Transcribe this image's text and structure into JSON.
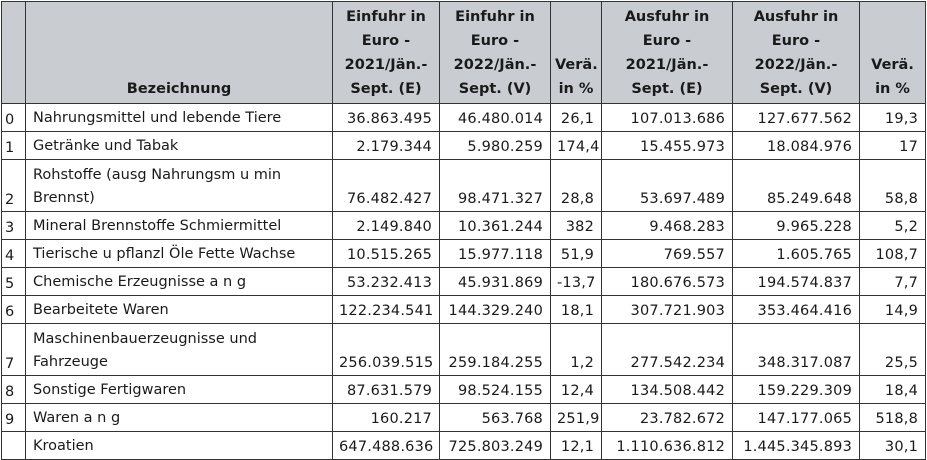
{
  "table": {
    "headers": {
      "code": "",
      "name": "Bezeichnung",
      "import_2021": "Einfuhr in Euro - 2021/Jän.-Sept. (E)",
      "import_2022": "Einfuhr in Euro - 2022/Jän.-Sept. (V)",
      "import_change": "Verä. in %",
      "export_2021": "Ausfuhr in Euro - 2021/Jän.-Sept. (E)",
      "export_2022": "Ausfuhr in Euro - 2022/Jän.-Sept. (V)",
      "export_change": "Verä. in %"
    },
    "rows": [
      {
        "code": "0",
        "name": "Nahrungsmittel und lebende Tiere",
        "import_2021": "36.863.495",
        "import_2022": "46.480.014",
        "import_change": "26,1",
        "export_2021": "107.013.686",
        "export_2022": "127.677.562",
        "export_change": "19,3"
      },
      {
        "code": "1",
        "name": "Getränke und Tabak",
        "import_2021": "2.179.344",
        "import_2022": "5.980.259",
        "import_change": "174,4",
        "export_2021": "15.455.973",
        "export_2022": "18.084.976",
        "export_change": "17"
      },
      {
        "code": "2",
        "name": "Rohstoffe (ausg Nahrungsm u min Brennst)",
        "import_2021": "76.482.427",
        "import_2022": "98.471.327",
        "import_change": "28,8",
        "export_2021": "53.697.489",
        "export_2022": "85.249.648",
        "export_change": "58,8"
      },
      {
        "code": "3",
        "name": "Mineral Brennstoffe Schmiermittel",
        "import_2021": "2.149.840",
        "import_2022": "10.361.244",
        "import_change": "382",
        "export_2021": "9.468.283",
        "export_2022": "9.965.228",
        "export_change": "5,2"
      },
      {
        "code": "4",
        "name": "Tierische u pflanzl Öle Fette Wachse",
        "import_2021": "10.515.265",
        "import_2022": "15.977.118",
        "import_change": "51,9",
        "export_2021": "769.557",
        "export_2022": "1.605.765",
        "export_change": "108,7"
      },
      {
        "code": "5",
        "name": "Chemische Erzeugnisse a n g",
        "import_2021": "53.232.413",
        "import_2022": "45.931.869",
        "import_change": "-13,7",
        "export_2021": "180.676.573",
        "export_2022": "194.574.837",
        "export_change": "7,7"
      },
      {
        "code": "6",
        "name": "Bearbeitete Waren",
        "import_2021": "122.234.541",
        "import_2022": "144.329.240",
        "import_change": "18,1",
        "export_2021": "307.721.903",
        "export_2022": "353.464.416",
        "export_change": "14,9"
      },
      {
        "code": "7",
        "name": "Maschinenbauerzeugnisse und Fahrzeuge",
        "import_2021": "256.039.515",
        "import_2022": "259.184.255",
        "import_change": "1,2",
        "export_2021": "277.542.234",
        "export_2022": "348.317.087",
        "export_change": "25,5"
      },
      {
        "code": "8",
        "name": "Sonstige Fertigwaren",
        "import_2021": "87.631.579",
        "import_2022": "98.524.155",
        "import_change": "12,4",
        "export_2021": "134.508.442",
        "export_2022": "159.229.309",
        "export_change": "18,4"
      },
      {
        "code": "9",
        "name": "Waren a n g",
        "import_2021": "160.217",
        "import_2022": "563.768",
        "import_change": "251,9",
        "export_2021": "23.782.672",
        "export_2022": "147.177.065",
        "export_change": "518,8"
      }
    ],
    "total": {
      "code": "",
      "name": "Kroatien",
      "import_2021": "647.488.636",
      "import_2022": "725.803.249",
      "import_change": "12,1",
      "export_2021": "1.110.636.812",
      "export_2022": "1.445.345.893",
      "export_change": "30,1"
    }
  },
  "colors": {
    "header_bg": "#c9cdd2",
    "border": "#333333"
  }
}
